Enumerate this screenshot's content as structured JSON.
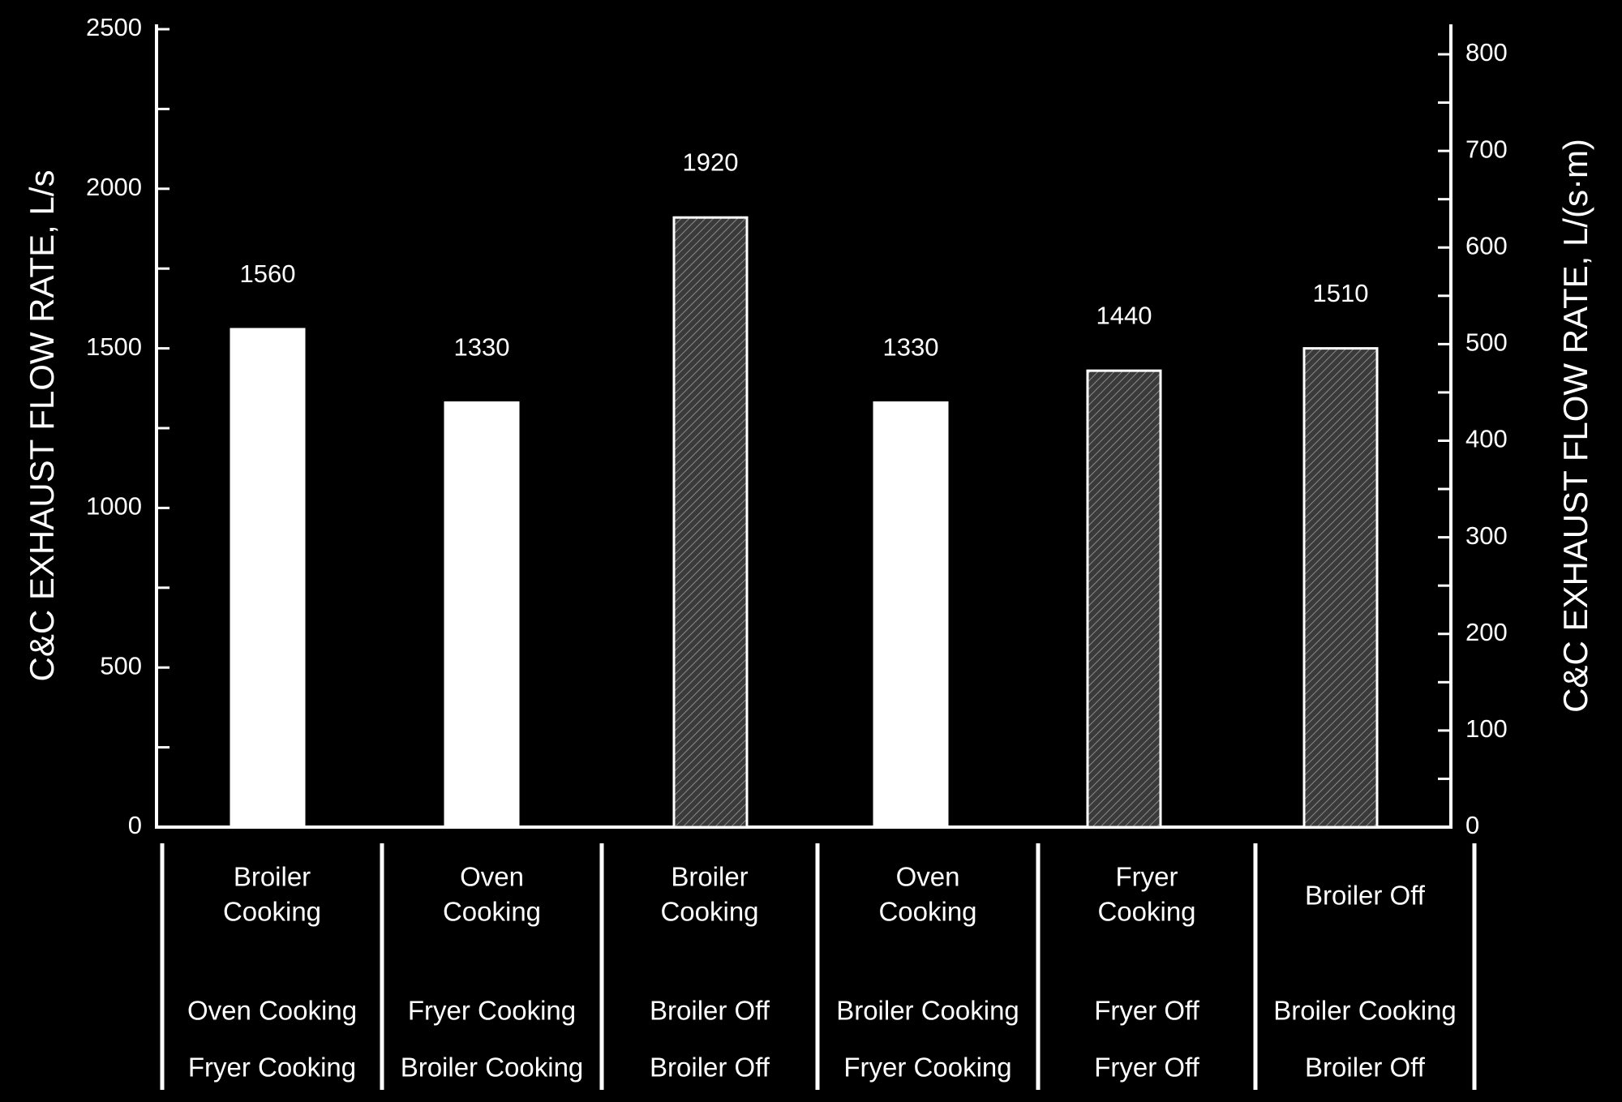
{
  "chart_data": {
    "type": "bar",
    "title": "",
    "ylabel": "C&C EXHAUST FLOW RATE, L/s",
    "ylabel_right": "C&C EXHAUST FLOW RATE, L/(s·m)",
    "ylim": [
      0,
      2500
    ],
    "ylim_right": [
      0,
      826
    ],
    "yticks": [
      0,
      500,
      1000,
      1500,
      2000,
      2500
    ],
    "yticks_right": [
      0,
      100,
      200,
      300,
      400,
      500,
      600,
      700,
      800
    ],
    "grid": false,
    "colors": {
      "background": "#000000",
      "bar_solid": "#ffffff",
      "bar_hatched": "#3a3a3a",
      "axis": "#ffffff"
    },
    "categories": [
      {
        "top": [
          "Broiler",
          "Cooking"
        ],
        "middle": "Oven Cooking",
        "bottom": "Fryer Cooking"
      },
      {
        "top": [
          "Oven",
          "Cooking"
        ],
        "middle": "Fryer Cooking",
        "bottom": "Broiler Cooking"
      },
      {
        "top": [
          "Broiler",
          "Cooking"
        ],
        "middle": "Broiler Off",
        "bottom": "Broiler Off"
      },
      {
        "top": [
          "Oven",
          "Cooking"
        ],
        "middle": "Broiler Cooking",
        "bottom": "Fryer Cooking"
      },
      {
        "top": [
          "Fryer",
          "Cooking"
        ],
        "middle": "Fryer Off",
        "bottom": "Fryer Off"
      },
      {
        "top": [
          "Broiler Off"
        ],
        "middle": "Broiler Cooking",
        "bottom": "Broiler Off"
      }
    ],
    "values": [
      1560,
      1330,
      1920,
      1330,
      1440,
      1510
    ],
    "bar_heights": [
      1560,
      1330,
      1910,
      1330,
      1430,
      1500
    ],
    "data_labels": [
      "1560",
      "1330",
      "1920",
      "1330",
      "1440",
      "1510"
    ],
    "bar_styles": [
      "solid",
      "solid",
      "hatched",
      "solid",
      "hatched",
      "hatched"
    ]
  }
}
